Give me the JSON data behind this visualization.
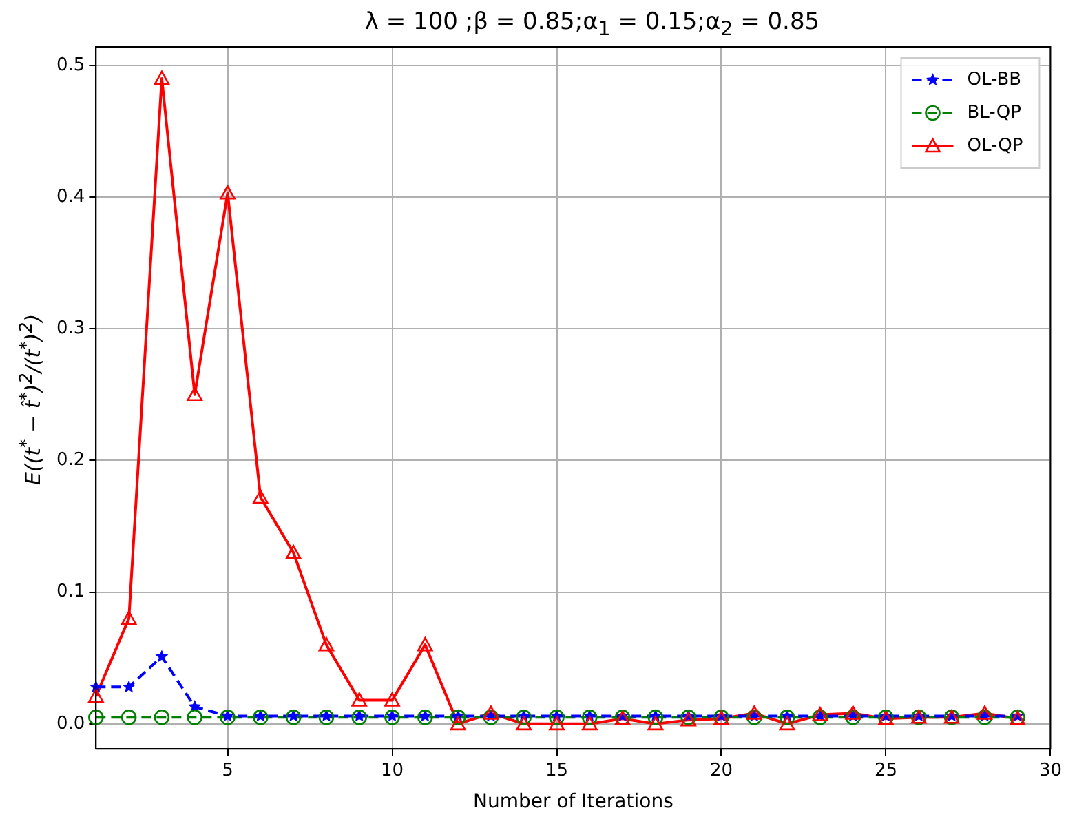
{
  "chart_data": {
    "type": "line",
    "title": "λ = 100 ;β = 0.85;α$_{1}$ = 0.15;α$_{2}$ = 0.85",
    "xlabel": "Number of Iterations",
    "ylabel": "E((t$^{*}$ − t̂$^{*}$)$^{2}$/(t$^{*}$)$^{2}$)",
    "x": [
      1,
      2,
      3,
      4,
      5,
      6,
      7,
      8,
      9,
      10,
      11,
      12,
      13,
      14,
      15,
      16,
      17,
      18,
      19,
      20,
      21,
      22,
      23,
      24,
      25,
      26,
      27,
      28,
      29
    ],
    "series": [
      {
        "name": "OL-BB",
        "color": "#0000ff",
        "marker": "star",
        "line_style": "dashed",
        "values": [
          0.028,
          0.028,
          0.051,
          0.013,
          0.006,
          0.006,
          0.006,
          0.006,
          0.006,
          0.006,
          0.006,
          0.006,
          0.006,
          0.006,
          0.006,
          0.006,
          0.006,
          0.006,
          0.006,
          0.006,
          0.006,
          0.006,
          0.006,
          0.006,
          0.006,
          0.006,
          0.006,
          0.006,
          0.006
        ]
      },
      {
        "name": "BL-QP",
        "color": "#008000",
        "marker": "circle",
        "line_style": "dashed",
        "values": [
          0.005,
          0.005,
          0.005,
          0.005,
          0.005,
          0.005,
          0.005,
          0.005,
          0.005,
          0.005,
          0.005,
          0.005,
          0.005,
          0.005,
          0.005,
          0.005,
          0.005,
          0.005,
          0.005,
          0.005,
          0.005,
          0.005,
          0.005,
          0.005,
          0.005,
          0.005,
          0.005,
          0.005,
          0.005
        ]
      },
      {
        "name": "OL-QP",
        "color": "#ff0000",
        "marker": "triangle",
        "line_style": "solid",
        "values": [
          0.021,
          0.08,
          0.49,
          0.25,
          0.403,
          0.172,
          0.13,
          0.06,
          0.018,
          0.018,
          0.06,
          0.0,
          0.008,
          0.0,
          0.0,
          0.0,
          0.004,
          0.0,
          0.003,
          0.004,
          0.008,
          0.0,
          0.007,
          0.008,
          0.004,
          0.005,
          0.005,
          0.008,
          0.004
        ]
      }
    ],
    "xlim": [
      1,
      30
    ],
    "xticks": [
      5,
      10,
      15,
      20,
      25,
      30
    ],
    "ylim": [
      -0.019,
      0.514
    ],
    "yticks": [
      {
        "value": 0,
        "label": "0.0"
      },
      0.1,
      0.2,
      0.3,
      0.4,
      0.5
    ],
    "grid": true,
    "legend": "top right"
  }
}
